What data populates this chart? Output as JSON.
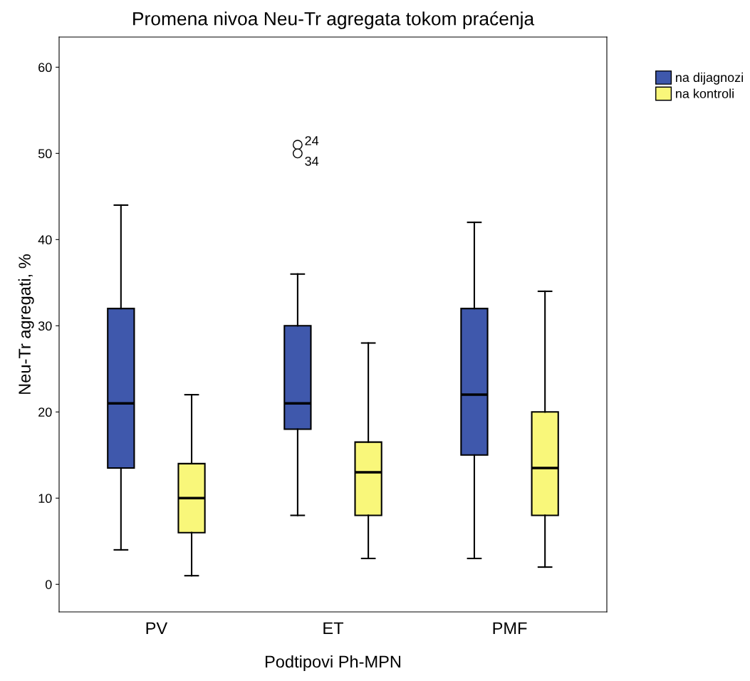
{
  "chart_data": {
    "type": "box",
    "title": "Promena nivoa Neu-Tr agregata tokom praćenja",
    "xlabel": "Podtipovi Ph-MPN",
    "ylabel": "Neu-Tr agregati, %",
    "categories": [
      "PV",
      "ET",
      "PMF"
    ],
    "series": [
      {
        "name": "na dijagnozi",
        "color": "#3f58ac",
        "boxes": [
          {
            "low": 4,
            "q1": 13.5,
            "median": 21,
            "q3": 32,
            "high": 44
          },
          {
            "low": 8,
            "q1": 18,
            "median": 21,
            "q3": 30,
            "high": 36,
            "outliers": [
              51,
              50
            ]
          },
          {
            "low": 3,
            "q1": 15,
            "median": 22,
            "q3": 32,
            "high": 42
          }
        ]
      },
      {
        "name": "na kontroli",
        "color": "#f9f77a",
        "boxes": [
          {
            "low": 1,
            "q1": 6,
            "median": 10,
            "q3": 14,
            "high": 22
          },
          {
            "low": 3,
            "q1": 8,
            "median": 13,
            "q3": 16.5,
            "high": 28
          },
          {
            "low": 2,
            "q1": 8,
            "median": 13.5,
            "q3": 20,
            "high": 34
          }
        ]
      }
    ],
    "annotations": [
      "24",
      "34"
    ],
    "ylim": [
      -3.2,
      63.5
    ],
    "yticks": [
      0,
      10,
      20,
      30,
      40,
      50,
      60
    ],
    "grid": false,
    "legend": "top right"
  }
}
